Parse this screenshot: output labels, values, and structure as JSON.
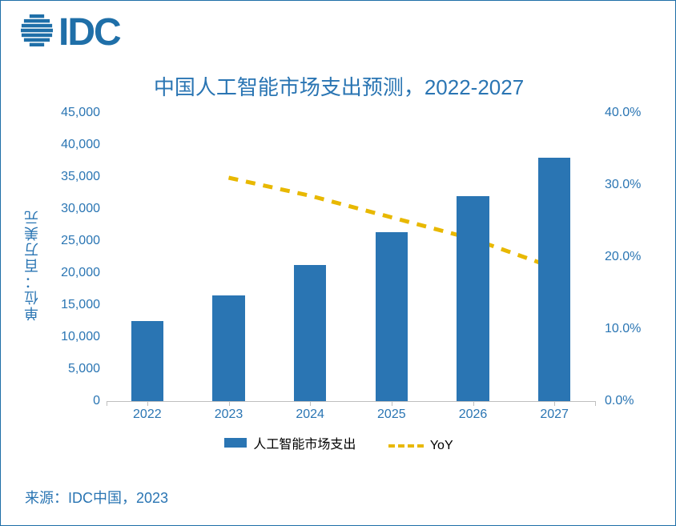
{
  "colors": {
    "brand": "#1f6fa8",
    "bar": "#2a75b3",
    "yoy_line": "#e8b800",
    "title": "#2a75b3",
    "axis_text": "#2a75b3",
    "source_text": "#2a75b3",
    "logo": "#1f6fa8"
  },
  "logo": {
    "text": "IDC"
  },
  "chart": {
    "type": "bar+line",
    "title": "中国人工智能市场支出预测，2022-2027",
    "y_left": {
      "label": "单位：百万美元",
      "min": 0,
      "max": 45000,
      "tick_step": 5000,
      "ticks": [
        "0",
        "5,000",
        "10,000",
        "15,000",
        "20,000",
        "25,000",
        "30,000",
        "35,000",
        "40,000",
        "45,000"
      ]
    },
    "y_right": {
      "min": 0,
      "max": 40,
      "tick_step": 10,
      "ticks": [
        "0.0%",
        "10.0%",
        "20.0%",
        "30.0%",
        "40.0%"
      ]
    },
    "categories": [
      "2022",
      "2023",
      "2024",
      "2025",
      "2026",
      "2027"
    ],
    "bars": {
      "label": "人工智能市场支出",
      "values": [
        12500,
        16500,
        21200,
        26400,
        32000,
        38000
      ],
      "color": "#2a75b3",
      "bar_width_frac": 0.4
    },
    "line": {
      "label": "YoY",
      "values": [
        null,
        31.0,
        28.5,
        25.5,
        22.5,
        18.5
      ],
      "color": "#e8b800",
      "dash": "12,10",
      "width": 5
    },
    "fontsize": {
      "title": 26,
      "axis": 16,
      "legend": 16
    }
  },
  "source": "来源：IDC中国，2023"
}
